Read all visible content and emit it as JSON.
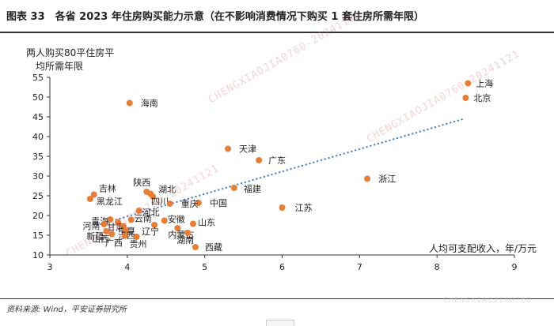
{
  "figure": {
    "title": "图表 33　各省 2023 年住房购买能力示意（在不影响消费情况下购买 1 套住房所需年限）",
    "source": "资料来源: Wind，平安证券研究所",
    "watermark": "CHENGXIAOJIA0760-20241121",
    "watermark_small": "CHENGXIAOJIA0760"
  },
  "colors": {
    "point": "#e67e36",
    "trend": "#3a73c9",
    "axis": "#333333"
  },
  "chart_data": {
    "type": "scatter",
    "ylabel": [
      "两人购买80平住房平",
      "均所需年限"
    ],
    "xlabel": "人均可支配收入，年/万元",
    "xlim": [
      3,
      9
    ],
    "ylim": [
      10,
      55
    ],
    "xticks": [
      3,
      4,
      5,
      6,
      7,
      8,
      9
    ],
    "yticks": [
      10,
      15,
      20,
      25,
      30,
      35,
      40,
      45,
      50,
      55
    ],
    "grid": false,
    "trendline": {
      "style": "dotted",
      "points": [
        [
          3.6,
          17.5
        ],
        [
          8.35,
          44.5
        ]
      ]
    },
    "points": [
      {
        "label": "上海",
        "x": 8.4,
        "y": 53.5
      },
      {
        "label": "北京",
        "x": 8.37,
        "y": 49.8
      },
      {
        "label": "海南",
        "x": 4.03,
        "y": 48.5
      },
      {
        "label": "天津",
        "x": 5.3,
        "y": 36.9
      },
      {
        "label": "广东",
        "x": 5.7,
        "y": 34.0
      },
      {
        "label": "浙江",
        "x": 7.1,
        "y": 29.3
      },
      {
        "label": "福建",
        "x": 5.38,
        "y": 27.0
      },
      {
        "label": "江苏",
        "x": 6.0,
        "y": 22.0
      },
      {
        "label": "中国",
        "x": 4.92,
        "y": 23.2
      },
      {
        "label": "吉林",
        "x": 3.57,
        "y": 25.3
      },
      {
        "label": "黑龙江",
        "x": 3.52,
        "y": 24.2
      },
      {
        "label": "陕西",
        "x": 4.25,
        "y": 26.0
      },
      {
        "label": "湖北",
        "x": 4.3,
        "y": 25.5
      },
      {
        "label": "四川",
        "x": 4.33,
        "y": 24.8
      },
      {
        "label": "重庆",
        "x": 4.55,
        "y": 23.0
      },
      {
        "label": "青海",
        "x": 3.78,
        "y": 19.0
      },
      {
        "label": "甘肃",
        "x": 3.88,
        "y": 18.3
      },
      {
        "label": "河北",
        "x": 4.15,
        "y": 21.2
      },
      {
        "label": "河南",
        "x": 3.7,
        "y": 17.8
      },
      {
        "label": "新疆",
        "x": 3.73,
        "y": 16.0
      },
      {
        "label": "宁夏",
        "x": 3.95,
        "y": 17.3
      },
      {
        "label": "山西",
        "x": 3.8,
        "y": 15.3
      },
      {
        "label": "江西",
        "x": 3.98,
        "y": 16.2
      },
      {
        "label": "云南",
        "x": 4.05,
        "y": 18.9
      },
      {
        "label": "安徽",
        "x": 4.48,
        "y": 18.7
      },
      {
        "label": "辽宁",
        "x": 4.35,
        "y": 17.6
      },
      {
        "label": "内蒙古",
        "x": 4.65,
        "y": 16.8
      },
      {
        "label": "山东",
        "x": 4.85,
        "y": 17.9
      },
      {
        "label": "湖南",
        "x": 4.78,
        "y": 15.6
      },
      {
        "label": "广西",
        "x": 3.97,
        "y": 14.9
      },
      {
        "label": "贵州",
        "x": 4.12,
        "y": 14.6
      },
      {
        "label": "西藏",
        "x": 4.88,
        "y": 12.0
      }
    ]
  }
}
